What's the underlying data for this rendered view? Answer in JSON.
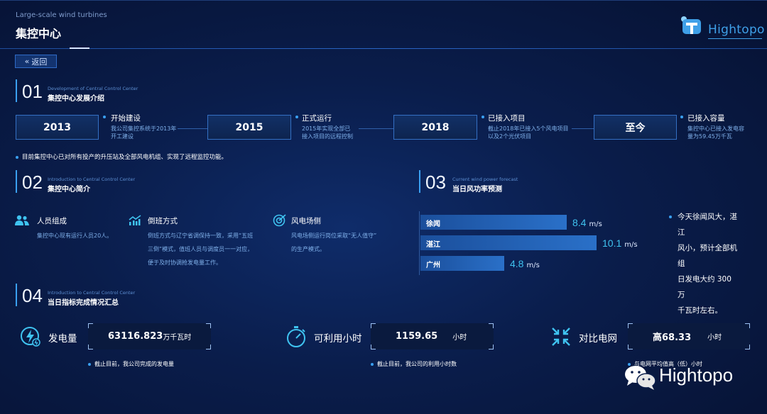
{
  "header": {
    "subtitle_en": "Large-scale wind turbines",
    "title": "集控中心",
    "back_label": "返回"
  },
  "logo": {
    "text": "Hightopo"
  },
  "section1": {
    "num": "01",
    "en": "Development of Central Control Center",
    "cn": "集控中心发展介绍",
    "timeline": [
      {
        "year": "2013",
        "title": "开始建设",
        "desc1": "我公司集控系统于2013年",
        "desc2": "开工建设"
      },
      {
        "year": "2015",
        "title": "正式运行",
        "desc1": "2015年实现全部已",
        "desc2": "接入项目的远程控制"
      },
      {
        "year": "2018",
        "title": "已接入项目",
        "desc1": "截止2018年已接入5个风电项目",
        "desc2": "以及2个光伏项目"
      },
      {
        "year": "至今",
        "title": "已接入容量",
        "desc1": "集控中心已接入发电容",
        "desc2": "量为59.45万千瓦"
      }
    ],
    "note": "目前集控中心已对所有投产的升压站及全部风电机组、实现了远程监控功能。"
  },
  "section2": {
    "num": "02",
    "en": "Introduction to Central Control Center",
    "cn": "集控中心简介",
    "items": [
      {
        "title": "人员组成",
        "lines": [
          "集控中心现有运行人员20人。"
        ]
      },
      {
        "title": "倒班方式",
        "lines": [
          "倒班方式与辽宁省调保持一致，采用“五班",
          "三倒”模式，值班人员与调度员一一对应，",
          "便于及时协调抢发电量工作。"
        ]
      },
      {
        "title": "风电场侧",
        "lines": [
          "风电场侧运行岗位采取“无人值守”",
          "的生产模式。"
        ]
      }
    ]
  },
  "section3": {
    "num": "03",
    "en": "Current wind power forecast",
    "cn": "当日风功率预测",
    "unit": "m/s",
    "bars": [
      {
        "name": "徐闻",
        "value": 8.4,
        "display": "8.4"
      },
      {
        "name": "湛江",
        "value": 10.1,
        "display": "10.1"
      },
      {
        "name": "广州",
        "value": 4.8,
        "display": "4.8"
      }
    ],
    "max_value": 11,
    "note": [
      "今天徐闻风大，湛江",
      "风小，预计全部机组",
      "日发电大约 300 万",
      "千瓦时左右。"
    ]
  },
  "section4": {
    "num": "04",
    "en": "Introduction to Central Control Center",
    "cn": "当日指标完成情况汇总",
    "kpis": [
      {
        "label": "发电量",
        "value": "63116.823",
        "unit": "万千瓦时",
        "note": "截止目前，我公司完成的发电量"
      },
      {
        "label": "可利用小时",
        "value": "1159.65",
        "unit": "小时",
        "note": "截止目前，我公司的利用小时数"
      },
      {
        "label": "对比电网",
        "value": "高68.33",
        "unit": "小时",
        "note": "与电网平均值高（低）小时"
      }
    ]
  },
  "watermark": {
    "text": "Hightopo"
  },
  "colors": {
    "accent": "#3aa0f2",
    "cyan": "#3fc3f0",
    "bar": "#2a70c8",
    "background": "#0a1d4b"
  }
}
